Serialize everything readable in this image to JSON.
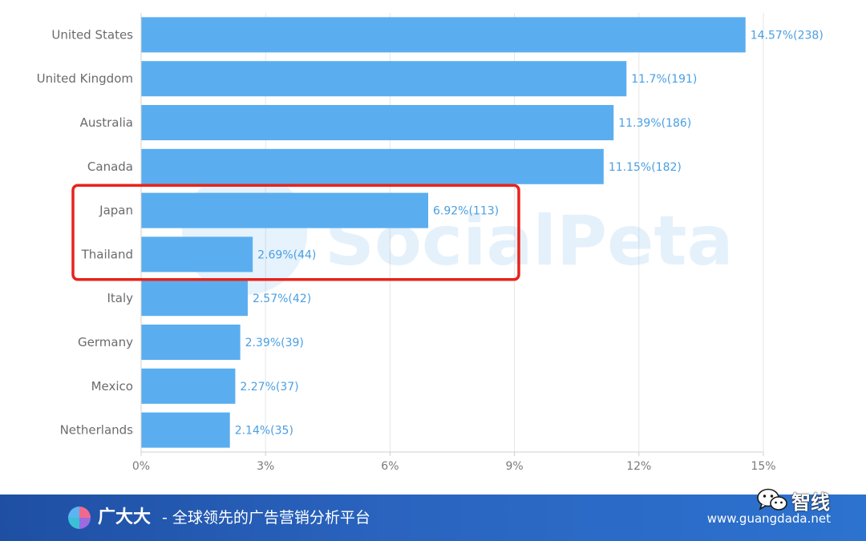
{
  "chart_data": {
    "type": "bar",
    "orientation": "horizontal",
    "categories": [
      "United States",
      "United Kingdom",
      "Australia",
      "Canada",
      "Japan",
      "Thailand",
      "Italy",
      "Germany",
      "Mexico",
      "Netherlands"
    ],
    "values": [
      14.57,
      11.7,
      11.39,
      11.15,
      6.92,
      2.69,
      2.57,
      2.39,
      2.27,
      2.14
    ],
    "counts": [
      238,
      191,
      186,
      182,
      113,
      44,
      42,
      39,
      37,
      35
    ],
    "value_labels": [
      "14.57%(238)",
      "11.7%(191)",
      "11.39%(186)",
      "11.15%(182)",
      "6.92%(113)",
      "2.69%(44)",
      "2.57%(42)",
      "2.39%(39)",
      "2.27%(37)",
      "2.14%(35)"
    ],
    "x_ticks": [
      0,
      3,
      6,
      9,
      12,
      15
    ],
    "x_tick_labels": [
      "0%",
      "3%",
      "6%",
      "9%",
      "12%",
      "15%"
    ],
    "xlim": [
      0,
      15
    ],
    "grid": true,
    "highlighted_categories": [
      "Japan",
      "Thailand"
    ],
    "colors": {
      "bar": "#5aaeef",
      "value_label": "#4a9fe3",
      "highlight_box": "#e8231a",
      "grid": "#e6e6e6"
    }
  },
  "watermark": {
    "text": "SocialPeta"
  },
  "footer": {
    "brand": "广大大",
    "tagline": "- 全球领先的广告营销分析平台",
    "url": "www.guangdada.net",
    "background": "#2558b0"
  },
  "wechat_badge": {
    "name": "智线",
    "icon": "wechat-icon"
  }
}
